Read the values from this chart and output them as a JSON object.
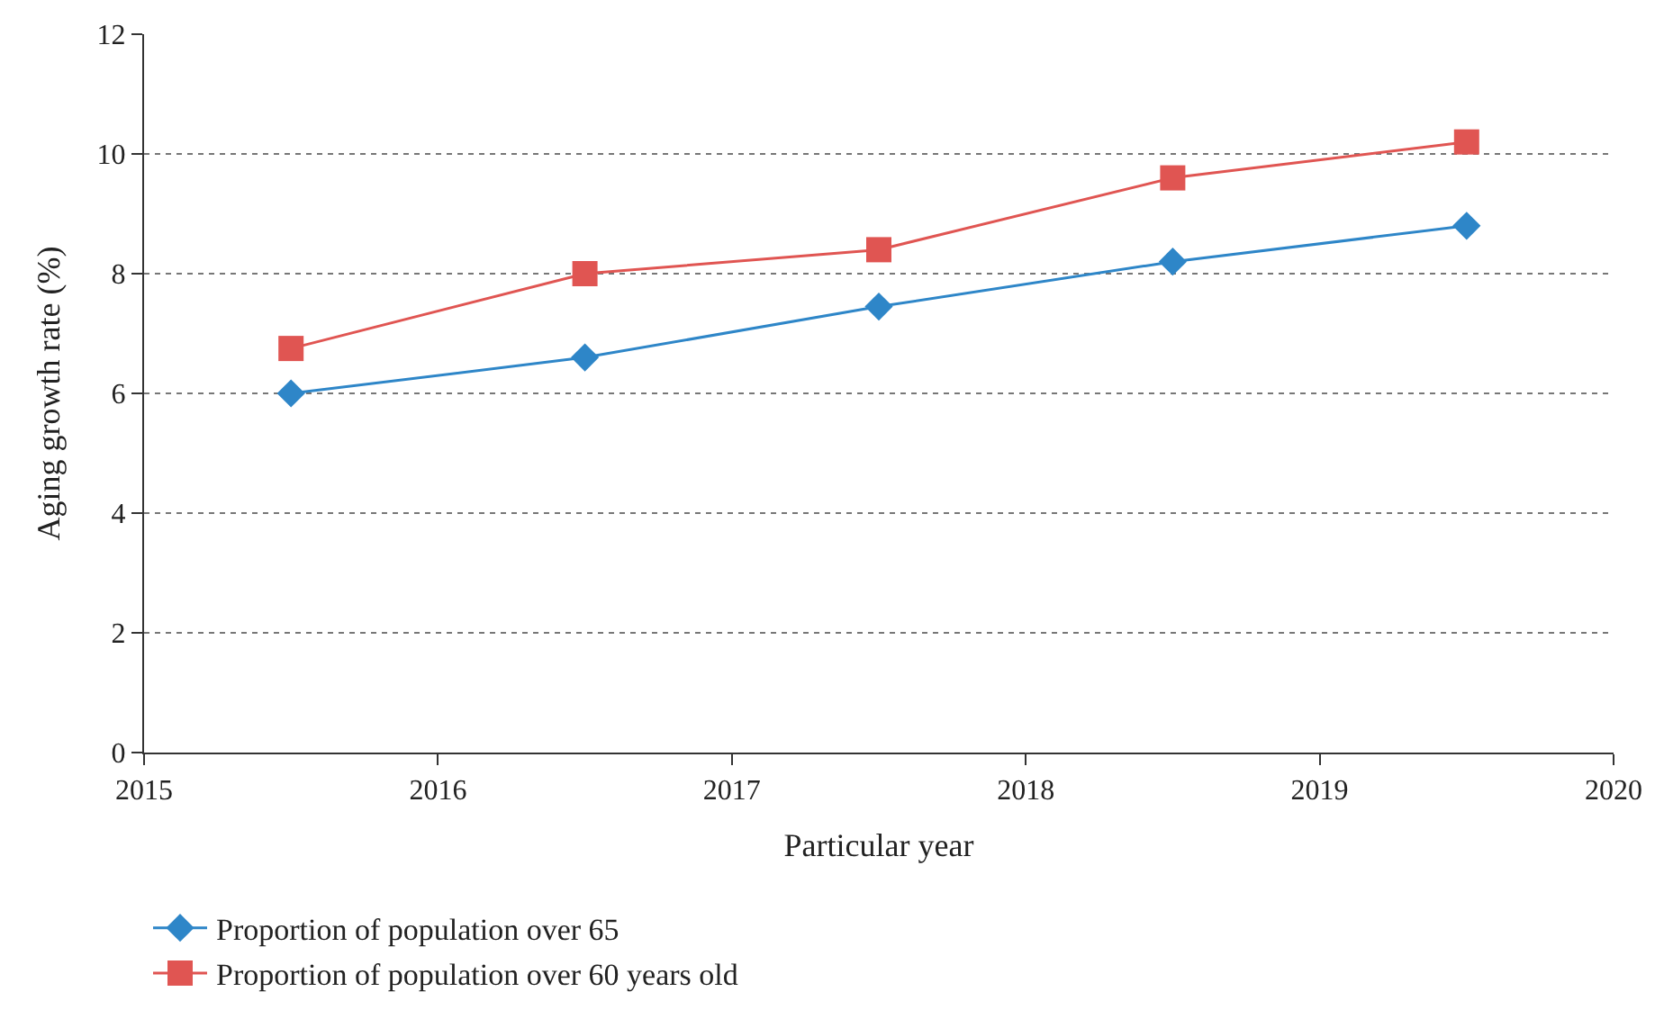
{
  "chart_data": {
    "type": "line",
    "xlabel": "Particular year",
    "ylabel": "Aging growth rate (%)",
    "x": [
      2015.5,
      2016.5,
      2017.5,
      2018.5,
      2019.5
    ],
    "series": [
      {
        "name": "Proportion of population over 65",
        "color": "#2e86c8",
        "marker": "diamond",
        "values": [
          6.0,
          6.6,
          7.45,
          8.2,
          8.8
        ]
      },
      {
        "name": "Proportion of population over 60 years old",
        "color": "#e05552",
        "marker": "square",
        "values": [
          6.75,
          8.0,
          8.4,
          9.6,
          10.2
        ]
      }
    ],
    "xlim": [
      2015,
      2020
    ],
    "xticks": [
      2015,
      2016,
      2017,
      2018,
      2019,
      2020
    ],
    "ylim": [
      0,
      12
    ],
    "yticks": [
      0,
      2,
      4,
      6,
      8,
      10,
      12
    ],
    "grid": "y",
    "legend": "bottom left",
    "line_style": "solid"
  }
}
